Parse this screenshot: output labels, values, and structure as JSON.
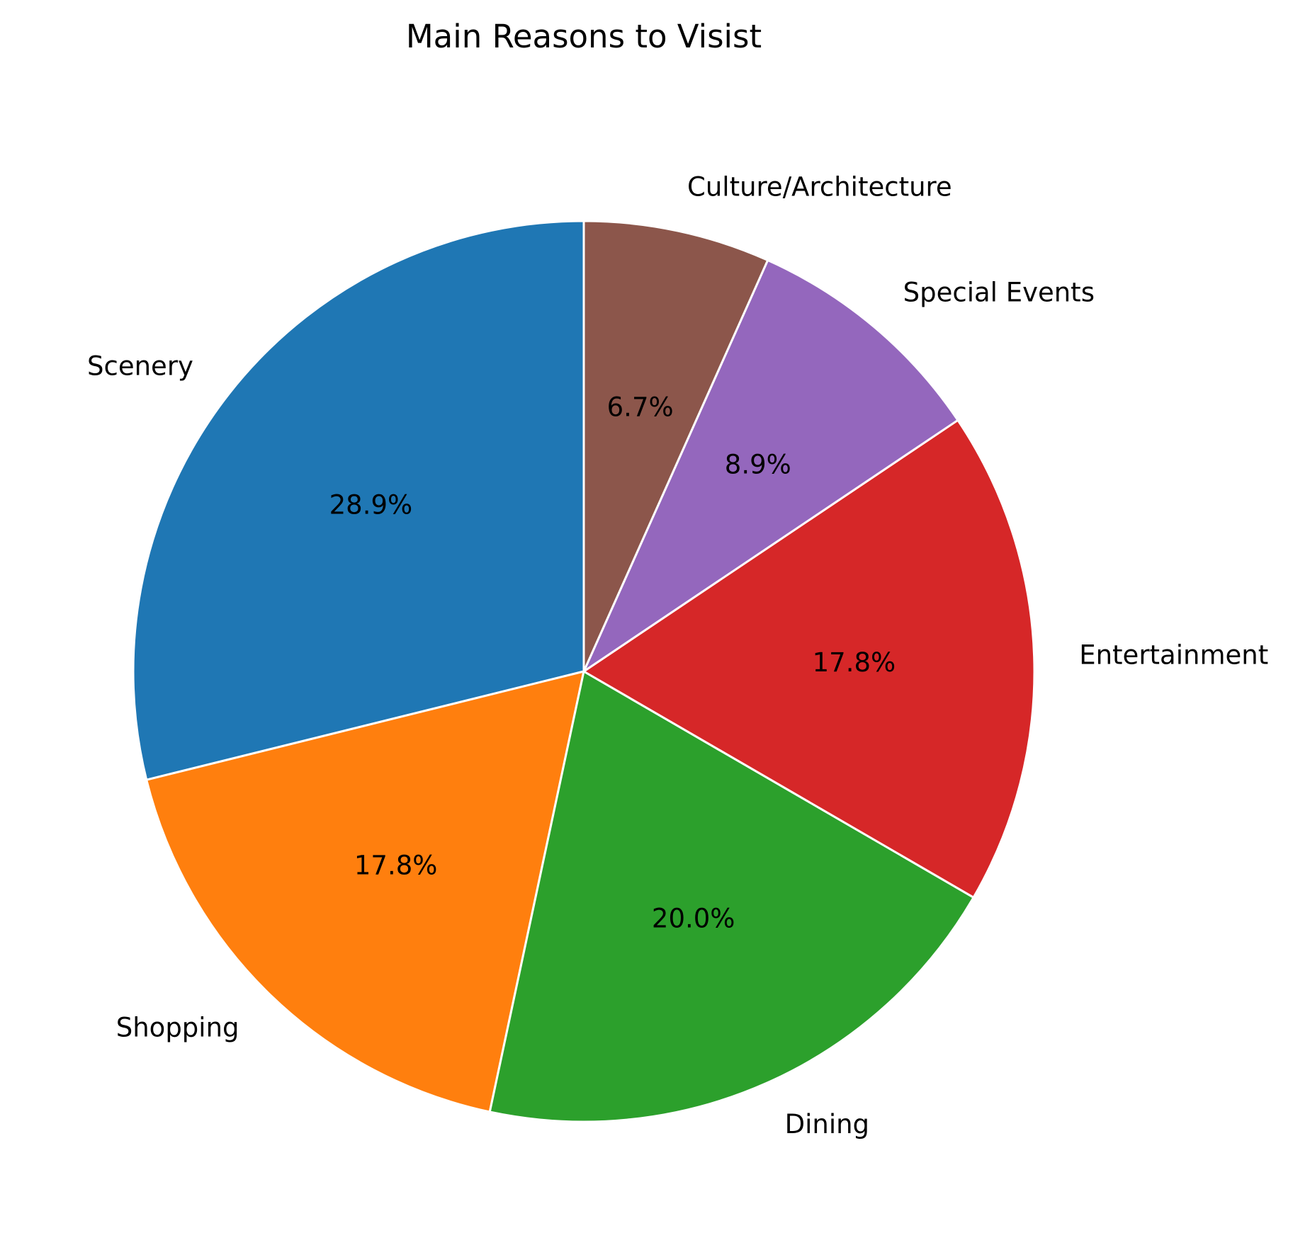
{
  "chart_data": {
    "type": "pie",
    "title": "Main Reasons to Visist",
    "categories": [
      "Scenery",
      "Shopping",
      "Dining",
      "Entertainment",
      "Special Events",
      "Culture/Architecture"
    ],
    "values": [
      28.9,
      17.8,
      20.0,
      17.8,
      8.9,
      6.7
    ],
    "percent_labels": [
      "28.9%",
      "17.8%",
      "20.0%",
      "17.8%",
      "8.9%",
      "6.7%"
    ],
    "colors": [
      "#1f77b4",
      "#ff7f0e",
      "#2ca02c",
      "#d62728",
      "#9467bd",
      "#8c564b"
    ],
    "start_angle_deg": 90,
    "direction": "counterclockwise",
    "edge_color": "#ffffff"
  }
}
